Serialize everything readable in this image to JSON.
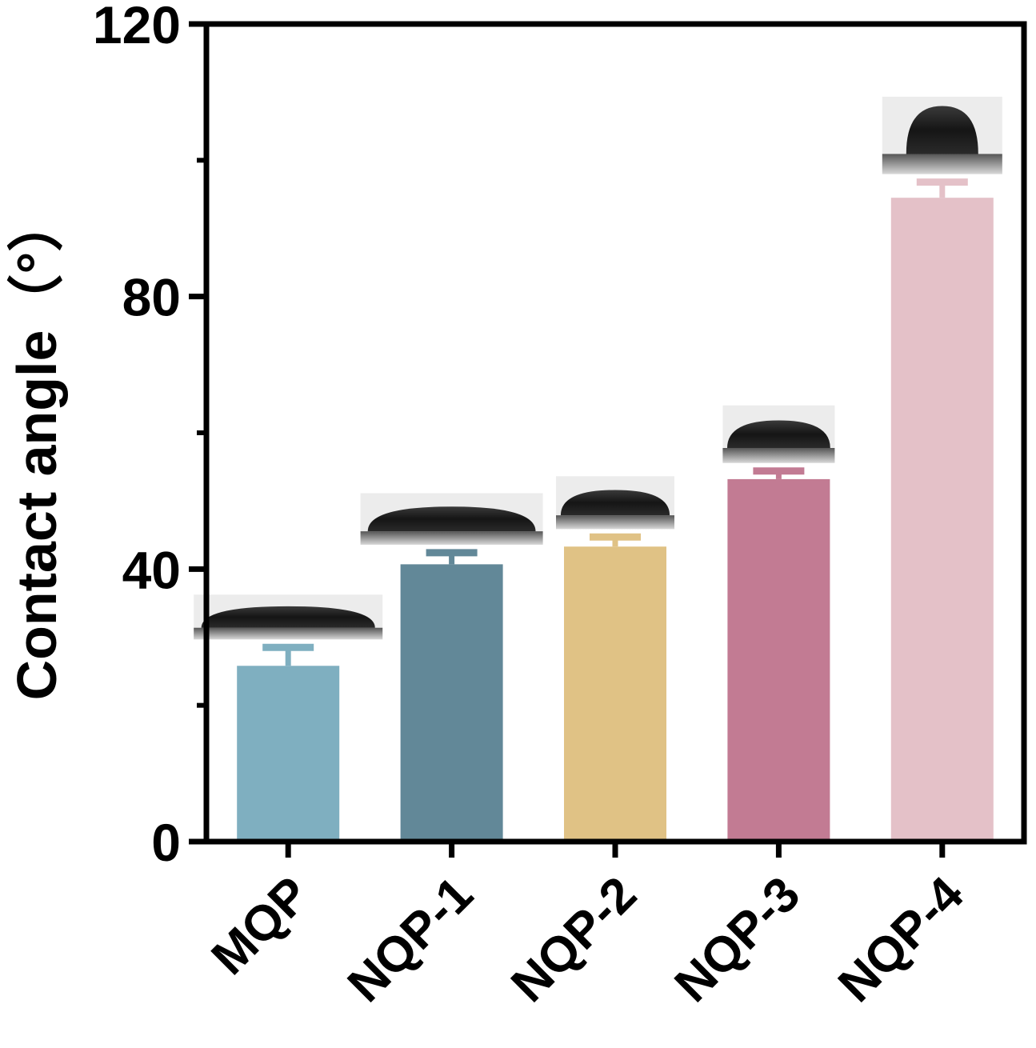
{
  "chart_data": {
    "type": "bar",
    "title": "",
    "xlabel": "",
    "ylabel": "Contact angle（°）",
    "ylim": [
      0,
      120
    ],
    "yticks": [
      0,
      40,
      80,
      120
    ],
    "grid": false,
    "legend": "none",
    "categories": [
      "MQP",
      "NQP-1",
      "NQP-2",
      "NQP-3",
      "NQP-4"
    ],
    "values": [
      25.8,
      40.7,
      43.3,
      53.2,
      94.5
    ],
    "errors": [
      2.7,
      1.7,
      1.4,
      1.2,
      2.3
    ],
    "colors": [
      "#7fafc0",
      "#628898",
      "#e0c285",
      "#c27b93",
      "#e4c1c8"
    ],
    "insets": [
      "droplet-image",
      "droplet-image",
      "droplet-image",
      "droplet-image",
      "droplet-image"
    ]
  }
}
